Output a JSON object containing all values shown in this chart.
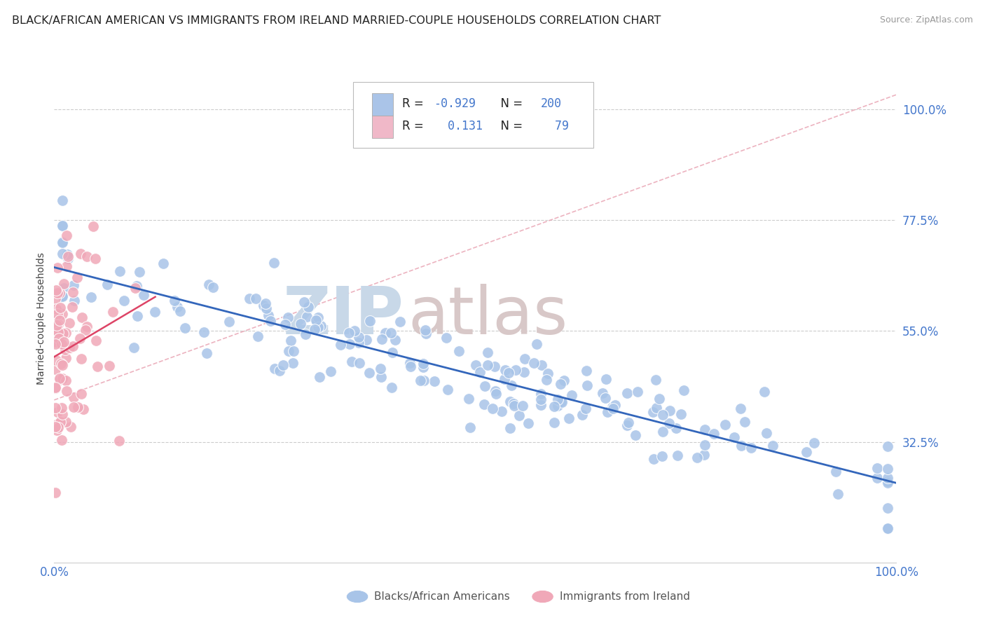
{
  "title": "BLACK/AFRICAN AMERICAN VS IMMIGRANTS FROM IRELAND MARRIED-COUPLE HOUSEHOLDS CORRELATION CHART",
  "source": "Source: ZipAtlas.com",
  "ylabel": "Married-couple Households",
  "xmin": 0.0,
  "xmax": 1.0,
  "ymin": 0.08,
  "ymax": 1.07,
  "yticks": [
    0.325,
    0.55,
    0.775,
    1.0
  ],
  "ytick_labels": [
    "32.5%",
    "55.0%",
    "77.5%",
    "100.0%"
  ],
  "xtick_labels": [
    "0.0%",
    "100.0%"
  ],
  "blue_R": -0.929,
  "blue_N": 200,
  "pink_R": 0.131,
  "pink_N": 79,
  "blue_scatter_color": "#a8c4e8",
  "pink_scatter_color": "#f0a8b8",
  "blue_line_color": "#3366bb",
  "pink_line_color": "#dd4466",
  "pink_dashed_color": "#e8a0b0",
  "legend_box_blue": "#aac4e8",
  "legend_box_pink": "#f0b8c8",
  "watermark_zip_color": "#c8d8e8",
  "watermark_atlas_color": "#d8c8c8",
  "grid_color": "#cccccc",
  "bg_color": "#ffffff",
  "title_fontsize": 11.5,
  "source_fontsize": 9,
  "tick_color": "#4477cc",
  "ylabel_color": "#444444",
  "ylabel_fontsize": 10,
  "legend_text_color": "#222222",
  "legend_value_color": "#4477cc"
}
